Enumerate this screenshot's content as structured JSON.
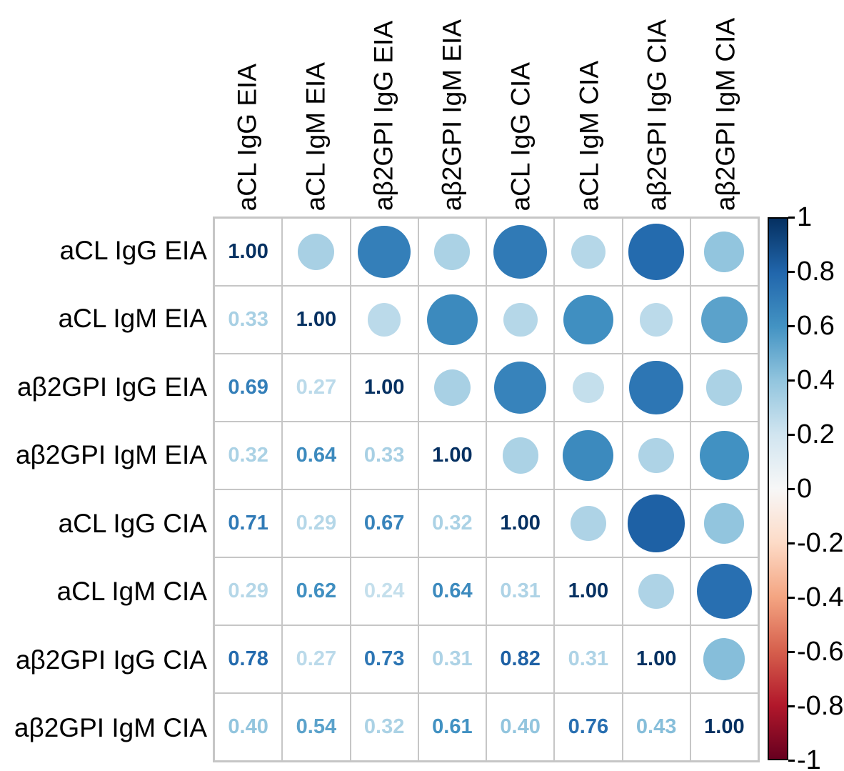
{
  "chart_data": {
    "type": "heatmap",
    "subtype": "correlogram",
    "title": "",
    "variables": [
      "aCL IgG EIA",
      "aCL IgM EIA",
      "aβ2GPI IgG EIA",
      "aβ2GPI IgM EIA",
      "aCL IgG CIA",
      "aCL IgM CIA",
      "aβ2GPI IgG CIA",
      "aβ2GPI IgM CIA"
    ],
    "matrix_lower_triangle": [
      [
        1.0
      ],
      [
        0.33,
        1.0
      ],
      [
        0.69,
        0.27,
        1.0
      ],
      [
        0.32,
        0.64,
        0.33,
        1.0
      ],
      [
        0.71,
        0.29,
        0.67,
        0.32,
        1.0
      ],
      [
        0.29,
        0.62,
        0.24,
        0.64,
        0.31,
        1.0
      ],
      [
        0.78,
        0.27,
        0.73,
        0.31,
        0.82,
        0.31,
        1.0
      ],
      [
        0.4,
        0.54,
        0.32,
        0.61,
        0.4,
        0.76,
        0.43,
        1.0
      ]
    ],
    "symmetric": true,
    "lower_triangle_style": "numbers",
    "upper_triangle_style": "circles",
    "diagonal_value_label": "1.00",
    "value_format_decimals": 2,
    "circle_size_rule": "diameter proportional to sqrt(|r|)",
    "colorbar": {
      "position": "right",
      "range": [
        -1,
        1
      ],
      "tick_values": [
        1,
        0.8,
        0.6,
        0.4,
        0.2,
        0,
        -0.2,
        -0.4,
        -0.6,
        -0.8,
        -1
      ],
      "tick_labels": [
        "1",
        "0.8",
        "0.6",
        "0.4",
        "0.2",
        "0",
        "-0.2",
        "-0.4",
        "-0.6",
        "-0.8",
        "-1"
      ]
    },
    "colormap_stops": [
      {
        "v": 1.0,
        "c": "#053061"
      },
      {
        "v": 0.8,
        "c": "#2166ac"
      },
      {
        "v": 0.6,
        "c": "#4393c3"
      },
      {
        "v": 0.4,
        "c": "#92c5de"
      },
      {
        "v": 0.2,
        "c": "#d1e5f0"
      },
      {
        "v": 0.0,
        "c": "#f7f7f7"
      },
      {
        "v": -0.2,
        "c": "#fddbc7"
      },
      {
        "v": -0.4,
        "c": "#f4a582"
      },
      {
        "v": -0.6,
        "c": "#d6604d"
      },
      {
        "v": -0.8,
        "c": "#b2182b"
      },
      {
        "v": -1.0,
        "c": "#67001f"
      }
    ],
    "style": {
      "grid_color": "#c6c6c6",
      "label_color": "#000000",
      "background": "#ffffff",
      "colorbar_border": "#000000"
    }
  }
}
